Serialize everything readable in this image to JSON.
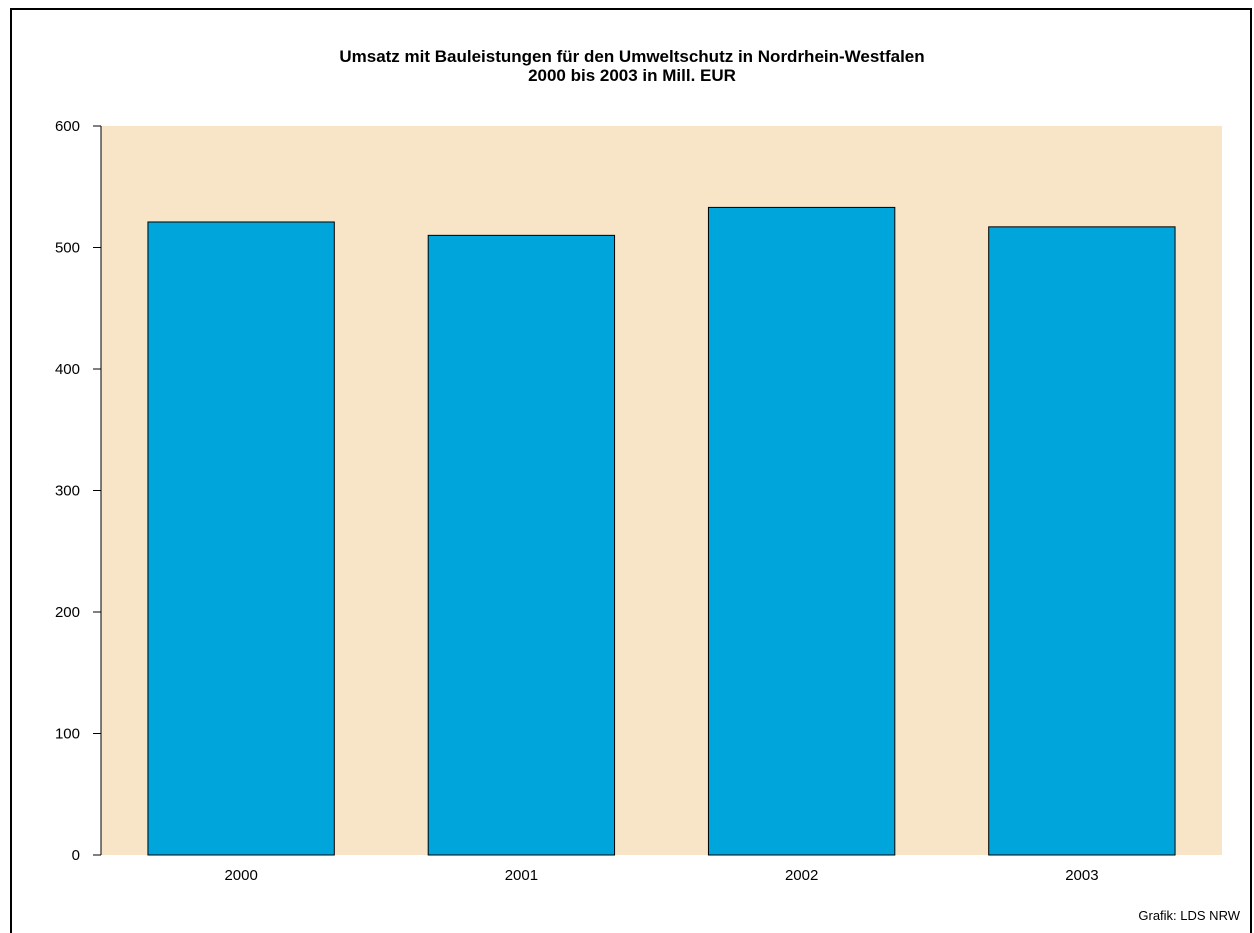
{
  "chart_data": {
    "type": "bar",
    "title_line1": "Umsatz mit  Bauleistungen für den Umweltschutz in Nordrhein-Westfalen",
    "title_line2": "2000 bis 2003 in Mill. EUR",
    "categories": [
      "2000",
      "2001",
      "2002",
      "2003"
    ],
    "values": [
      521,
      510,
      533,
      517
    ],
    "ylim": [
      0,
      600
    ],
    "yticks": [
      0,
      100,
      200,
      300,
      400,
      500,
      600
    ],
    "xlabel": "",
    "ylabel": "",
    "grid": false,
    "colors": {
      "bar": "#00a5dc",
      "bar_stroke": "#000000",
      "plot_background": "#f8e5c8"
    }
  },
  "credit": "Grafik: LDS NRW"
}
